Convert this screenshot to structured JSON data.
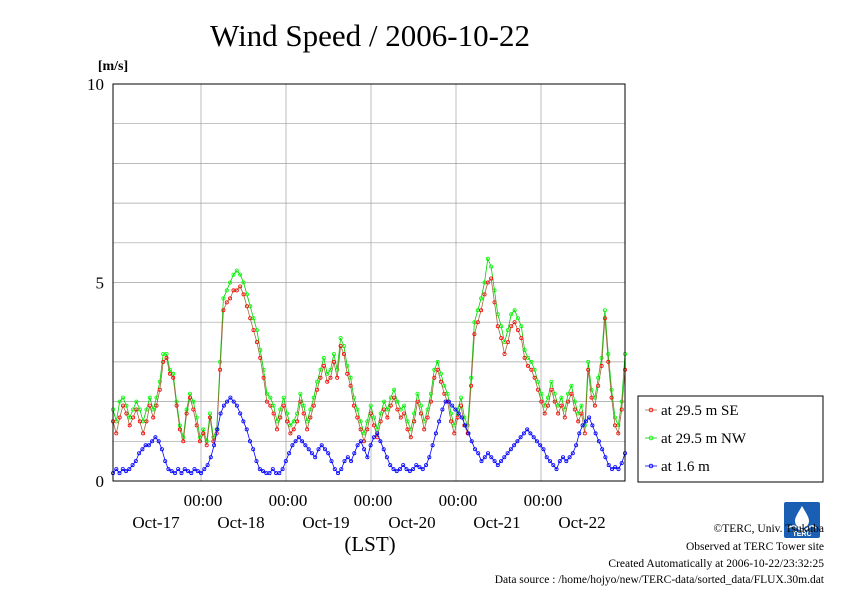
{
  "chart_data": {
    "type": "line",
    "title": "Wind Speed / 2006-10-22",
    "ylabel": "[m/s]",
    "xlabel": "(LST)",
    "ylim": [
      0,
      10
    ],
    "y_ticks": [
      "0",
      "5",
      "10"
    ],
    "x_ticks_time": [
      "00:00",
      "00:00",
      "00:00",
      "00:00",
      "00:00"
    ],
    "x_ticks_date": [
      "Oct-17",
      "Oct-18",
      "Oct-19",
      "Oct-20",
      "Oct-21",
      "Oct-22"
    ],
    "grid": true,
    "legend_position": "right",
    "series": [
      {
        "name": "at 29.5 m SE",
        "color": "#ff0000",
        "line_color": "#a06a3c",
        "values": [
          1.5,
          1.2,
          1.6,
          1.9,
          1.7,
          1.4,
          1.6,
          1.8,
          1.5,
          1.2,
          1.5,
          1.9,
          1.6,
          1.9,
          2.3,
          3.0,
          3.1,
          2.7,
          2.6,
          1.9,
          1.3,
          1.0,
          1.7,
          2.1,
          1.8,
          1.4,
          1.0,
          1.2,
          0.9,
          1.6,
          1.0,
          1.2,
          2.8,
          4.3,
          4.5,
          4.6,
          4.8,
          4.8,
          4.9,
          4.7,
          4.4,
          4.1,
          3.8,
          3.5,
          3.1,
          2.6,
          2.0,
          1.9,
          1.7,
          1.3,
          1.6,
          1.9,
          1.5,
          1.2,
          1.3,
          1.5,
          2.0,
          1.7,
          1.3,
          1.6,
          1.9,
          2.3,
          2.6,
          2.9,
          2.5,
          2.6,
          3.0,
          2.6,
          3.4,
          3.2,
          2.7,
          2.4,
          1.9,
          1.6,
          1.3,
          1.0,
          1.3,
          1.7,
          1.4,
          1.1,
          1.5,
          1.8,
          1.6,
          1.9,
          2.1,
          1.8,
          1.6,
          1.7,
          1.3,
          1.1,
          1.5,
          2.0,
          1.7,
          1.3,
          1.6,
          2.0,
          2.6,
          2.8,
          2.5,
          2.2,
          2.0,
          1.5,
          1.2,
          1.6,
          1.9,
          1.4,
          1.2,
          2.4,
          3.7,
          4.0,
          4.3,
          4.7,
          5.0,
          5.1,
          4.5,
          3.9,
          3.6,
          3.2,
          3.5,
          3.9,
          4.0,
          3.8,
          3.6,
          3.1,
          2.9,
          2.8,
          2.6,
          2.3,
          2.0,
          1.7,
          1.9,
          2.3,
          2.0,
          1.7,
          1.9,
          1.6,
          2.0,
          2.2,
          1.8,
          1.5,
          1.7,
          1.2,
          2.8,
          2.1,
          1.9,
          2.4,
          2.9,
          4.1,
          3.0,
          2.1,
          1.4,
          1.2,
          1.8,
          2.8
        ]
      },
      {
        "name": "at 29.5 m NW",
        "color": "#00ff00",
        "line_color": "#00cc00",
        "values": [
          1.8,
          1.5,
          2.0,
          2.1,
          1.9,
          1.6,
          1.8,
          2.0,
          1.8,
          1.5,
          1.8,
          2.1,
          1.8,
          2.1,
          2.5,
          3.2,
          3.2,
          2.8,
          2.7,
          2.0,
          1.4,
          1.1,
          1.8,
          2.2,
          2.0,
          1.6,
          1.1,
          1.3,
          1.0,
          1.7,
          1.1,
          1.3,
          3.0,
          4.6,
          4.8,
          5.0,
          5.2,
          5.3,
          5.2,
          5.0,
          4.7,
          4.4,
          4.1,
          3.8,
          3.3,
          2.8,
          2.2,
          2.1,
          1.9,
          1.5,
          1.8,
          2.1,
          1.7,
          1.4,
          1.5,
          1.7,
          2.2,
          1.9,
          1.5,
          1.8,
          2.1,
          2.5,
          2.8,
          3.1,
          2.7,
          2.8,
          3.2,
          2.8,
          3.6,
          3.4,
          2.9,
          2.6,
          2.1,
          1.8,
          1.5,
          1.2,
          1.5,
          1.9,
          1.6,
          1.3,
          1.7,
          2.0,
          1.8,
          2.1,
          2.3,
          2.0,
          1.8,
          1.9,
          1.5,
          1.3,
          1.7,
          2.2,
          1.9,
          1.5,
          1.8,
          2.2,
          2.8,
          3.0,
          2.7,
          2.4,
          2.2,
          1.7,
          1.4,
          1.8,
          2.1,
          1.6,
          1.4,
          2.6,
          4.0,
          4.3,
          4.6,
          5.0,
          5.6,
          5.4,
          4.8,
          4.2,
          3.9,
          3.5,
          3.8,
          4.2,
          4.3,
          4.1,
          3.9,
          3.3,
          3.1,
          3.0,
          2.8,
          2.5,
          2.2,
          1.9,
          2.1,
          2.5,
          2.2,
          1.9,
          2.1,
          1.8,
          2.2,
          2.4,
          2.0,
          1.7,
          1.9,
          1.4,
          3.0,
          2.3,
          2.1,
          2.6,
          3.1,
          4.3,
          3.2,
          2.3,
          1.6,
          1.4,
          2.0,
          3.2
        ]
      },
      {
        "name": "at 1.6 m",
        "color": "#0000ff",
        "line_color": "#0000ff",
        "values": [
          0.2,
          0.3,
          0.2,
          0.3,
          0.25,
          0.3,
          0.4,
          0.5,
          0.7,
          0.8,
          0.9,
          0.9,
          1.0,
          1.1,
          1.0,
          0.8,
          0.5,
          0.3,
          0.25,
          0.2,
          0.3,
          0.2,
          0.3,
          0.25,
          0.2,
          0.3,
          0.25,
          0.2,
          0.3,
          0.4,
          0.6,
          0.9,
          1.3,
          1.7,
          1.9,
          2.0,
          2.1,
          2.0,
          1.9,
          1.7,
          1.5,
          1.3,
          1.0,
          0.8,
          0.5,
          0.3,
          0.25,
          0.2,
          0.2,
          0.3,
          0.2,
          0.2,
          0.3,
          0.5,
          0.7,
          0.9,
          1.0,
          1.1,
          1.0,
          0.9,
          0.8,
          0.7,
          0.6,
          0.8,
          0.9,
          0.8,
          0.7,
          0.5,
          0.3,
          0.2,
          0.3,
          0.5,
          0.6,
          0.5,
          0.7,
          0.9,
          1.0,
          0.8,
          0.6,
          0.9,
          1.1,
          1.2,
          1.0,
          0.8,
          0.6,
          0.4,
          0.3,
          0.25,
          0.3,
          0.4,
          0.3,
          0.25,
          0.3,
          0.4,
          0.35,
          0.3,
          0.4,
          0.6,
          0.9,
          1.2,
          1.5,
          1.8,
          2.0,
          2.0,
          1.9,
          1.8,
          1.7,
          1.6,
          1.4,
          1.2,
          1.0,
          0.8,
          0.7,
          0.5,
          0.6,
          0.7,
          0.6,
          0.5,
          0.4,
          0.5,
          0.6,
          0.7,
          0.8,
          0.9,
          1.0,
          1.1,
          1.2,
          1.3,
          1.2,
          1.1,
          1.0,
          0.9,
          0.8,
          0.6,
          0.5,
          0.4,
          0.3,
          0.5,
          0.6,
          0.5,
          0.6,
          0.7,
          0.9,
          1.2,
          1.4,
          1.5,
          1.6,
          1.4,
          1.2,
          1.0,
          0.8,
          0.6,
          0.4,
          0.3,
          0.35,
          0.3,
          0.45,
          0.7
        ]
      }
    ]
  },
  "footer": {
    "credit": "©TERC, Univ. Tsukuba",
    "observed": "Observed at TERC Tower site",
    "created": "Created Automatically at 2006-10-22/23:32:25",
    "source": "Data source : /home/hojyo/new/TERC-data/sorted_data/FLUX.30m.dat"
  },
  "logo": {
    "text": "TERC",
    "color": "#1a5fb4"
  }
}
